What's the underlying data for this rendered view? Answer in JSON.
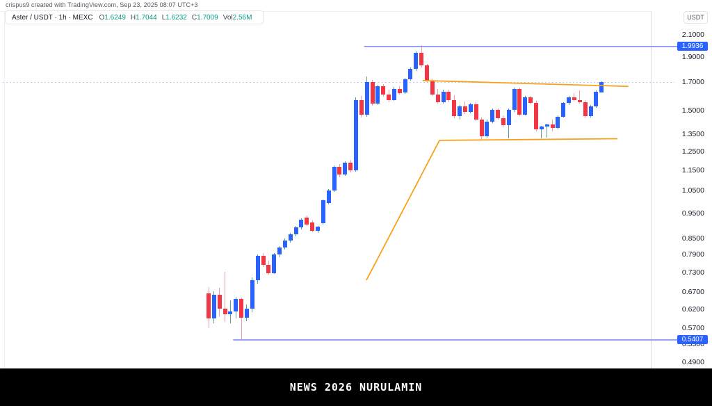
{
  "header": {
    "credit": "crispus9 created with TradingView.com, Sep 23, 2025 08:07 UTC+3"
  },
  "legend": {
    "title": "Aster / USDT · 1h · MEXC",
    "items": [
      {
        "label": "O",
        "value": "1.6249"
      },
      {
        "label": "H",
        "value": "1.7044"
      },
      {
        "label": "L",
        "value": "1.6232"
      },
      {
        "label": "C",
        "value": "1.7009"
      },
      {
        "label": "Vol",
        "value": "2.56M"
      }
    ]
  },
  "price_axis": {
    "currency_button": "USDT"
  },
  "footer": {
    "banner_text": "NEWS 2026 NURULAMIN"
  },
  "colors": {
    "up_body": "#2962FF",
    "down_body": "#F23645",
    "up_wick": "#57A39C",
    "down_wick": "#F29BA3",
    "trendline_orange": "#F9A11B",
    "ray_blue": "#7E93F5",
    "ray_label_bg": "#2962FF",
    "legend_value_teal": "#089981",
    "current_price_dots": "#BCC8F5"
  },
  "chart_data": {
    "type": "candlestick",
    "symbol": "ASTER/USDT",
    "interval": "1h",
    "exchange": "MEXC",
    "scale": "log",
    "ylim": [
      0.49,
      2.1
    ],
    "grid": false,
    "current_price_line": 1.7009,
    "last_candle": {
      "open": 1.6249,
      "high": 1.7044,
      "low": 1.6232,
      "close": 1.7009,
      "volume": "2.56M"
    },
    "axis_ticks": [
      {
        "label": "2.1000",
        "price": 2.1
      },
      {
        "label": "1.9000",
        "price": 1.9
      },
      {
        "label": "1.7000",
        "price": 1.7
      },
      {
        "label": "1.5000",
        "price": 1.5
      },
      {
        "label": "1.3500",
        "price": 1.35
      },
      {
        "label": "1.2500",
        "price": 1.25
      },
      {
        "label": "1.1500",
        "price": 1.15
      },
      {
        "label": "1.0500",
        "price": 1.05
      },
      {
        "label": "0.9500",
        "price": 0.95
      },
      {
        "label": "0.8500",
        "price": 0.85
      },
      {
        "label": "0.7900",
        "price": 0.79
      },
      {
        "label": "0.7300",
        "price": 0.73
      },
      {
        "label": "0.6700",
        "price": 0.67
      },
      {
        "label": "0.6200",
        "price": 0.62
      },
      {
        "label": "0.5700",
        "price": 0.57
      },
      {
        "label": "0.5300",
        "price": 0.53
      },
      {
        "label": "0.4900",
        "price": 0.49
      }
    ],
    "horizontal_rays": [
      {
        "price": 1.9936,
        "label": "1.9936",
        "start_index": 28.5
      },
      {
        "price": 0.5407,
        "label": "0.5407",
        "start_index": 4.5
      }
    ],
    "trendlines": [
      {
        "name": "upper-resistance",
        "points": [
          [
            39.2,
            1.7135
          ],
          [
            76.9,
            1.6689
          ]
        ]
      },
      {
        "name": "rising-support",
        "points": [
          [
            28.9,
            0.705
          ],
          [
            42.3,
            1.3129
          ],
          [
            74.9,
            1.3228
          ]
        ]
      }
    ],
    "candles": [
      [
        0.664,
        0.684,
        0.57,
        0.595
      ],
      [
        0.595,
        0.671,
        0.582,
        0.66
      ],
      [
        0.66,
        0.681,
        0.6,
        0.622
      ],
      [
        0.622,
        0.731,
        0.585,
        0.607
      ],
      [
        0.607,
        0.645,
        0.583,
        0.614
      ],
      [
        0.614,
        0.655,
        0.595,
        0.648
      ],
      [
        0.648,
        0.652,
        0.541,
        0.596
      ],
      [
        0.596,
        0.633,
        0.588,
        0.621
      ],
      [
        0.621,
        0.715,
        0.612,
        0.705
      ],
      [
        0.705,
        0.79,
        0.695,
        0.785
      ],
      [
        0.785,
        0.795,
        0.748,
        0.755
      ],
      [
        0.755,
        0.768,
        0.722,
        0.728
      ],
      [
        0.728,
        0.795,
        0.725,
        0.79
      ],
      [
        0.79,
        0.82,
        0.782,
        0.815
      ],
      [
        0.815,
        0.848,
        0.808,
        0.842
      ],
      [
        0.842,
        0.87,
        0.832,
        0.865
      ],
      [
        0.865,
        0.898,
        0.858,
        0.892
      ],
      [
        0.892,
        0.928,
        0.885,
        0.923
      ],
      [
        0.932,
        0.94,
        0.898,
        0.902
      ],
      [
        0.912,
        0.92,
        0.872,
        0.878
      ],
      [
        0.878,
        0.898,
        0.87,
        0.895
      ],
      [
        0.91,
        1.008,
        0.902,
        1.005
      ],
      [
        0.995,
        1.058,
        0.988,
        1.052
      ],
      [
        1.052,
        1.175,
        1.045,
        1.168
      ],
      [
        1.168,
        1.182,
        1.115,
        1.128
      ],
      [
        1.128,
        1.198,
        1.12,
        1.19
      ],
      [
        1.19,
        1.205,
        1.138,
        1.15
      ],
      [
        1.15,
        1.59,
        1.142,
        1.572
      ],
      [
        1.572,
        1.6,
        1.455,
        1.47
      ],
      [
        1.47,
        1.745,
        1.46,
        1.702
      ],
      [
        1.702,
        1.715,
        1.53,
        1.545
      ],
      [
        1.545,
        1.68,
        1.538,
        1.67
      ],
      [
        1.67,
        1.685,
        1.595,
        1.61
      ],
      [
        1.61,
        1.645,
        1.558,
        1.572
      ],
      [
        1.572,
        1.665,
        1.565,
        1.652
      ],
      [
        1.652,
        1.67,
        1.608,
        1.622
      ],
      [
        1.622,
        1.735,
        1.615,
        1.722
      ],
      [
        1.722,
        1.815,
        1.712,
        1.802
      ],
      [
        1.802,
        1.952,
        1.79,
        1.94
      ],
      [
        1.94,
        2.005,
        1.815,
        1.83
      ],
      [
        1.83,
        1.845,
        1.695,
        1.705
      ],
      [
        1.705,
        1.73,
        1.6,
        1.612
      ],
      [
        1.612,
        1.648,
        1.545,
        1.558
      ],
      [
        1.558,
        1.645,
        1.548,
        1.632
      ],
      [
        1.632,
        1.645,
        1.555,
        1.568
      ],
      [
        1.568,
        1.605,
        1.448,
        1.462
      ],
      [
        1.462,
        1.538,
        1.44,
        1.528
      ],
      [
        1.528,
        1.56,
        1.478,
        1.49
      ],
      [
        1.49,
        1.552,
        1.482,
        1.541
      ],
      [
        1.541,
        1.556,
        1.43,
        1.44
      ],
      [
        1.44,
        1.452,
        1.318,
        1.336
      ],
      [
        1.336,
        1.438,
        1.328,
        1.428
      ],
      [
        1.428,
        1.512,
        1.42,
        1.502
      ],
      [
        1.502,
        1.515,
        1.442,
        1.45
      ],
      [
        1.45,
        1.468,
        1.392,
        1.404
      ],
      [
        1.404,
        1.512,
        1.325,
        1.502
      ],
      [
        1.502,
        1.662,
        1.488,
        1.648
      ],
      [
        1.648,
        1.66,
        1.462,
        1.472
      ],
      [
        1.472,
        1.598,
        1.465,
        1.59
      ],
      [
        1.59,
        1.602,
        1.54,
        1.552
      ],
      [
        1.552,
        1.565,
        1.368,
        1.378
      ],
      [
        1.378,
        1.402,
        1.325,
        1.396
      ],
      [
        1.396,
        1.415,
        1.33,
        1.408
      ],
      [
        1.408,
        1.438,
        1.368,
        1.386
      ],
      [
        1.386,
        1.468,
        1.38,
        1.46
      ],
      [
        1.46,
        1.558,
        1.452,
        1.55
      ],
      [
        1.55,
        1.6,
        1.535,
        1.59
      ],
      [
        1.59,
        1.622,
        1.56,
        1.572
      ],
      [
        1.572,
        1.64,
        1.548,
        1.558
      ],
      [
        1.558,
        1.57,
        1.452,
        1.462
      ],
      [
        1.462,
        1.535,
        1.455,
        1.528
      ],
      [
        1.528,
        1.638,
        1.52,
        1.628
      ],
      [
        1.6249,
        1.7044,
        1.6232,
        1.7009
      ]
    ]
  }
}
